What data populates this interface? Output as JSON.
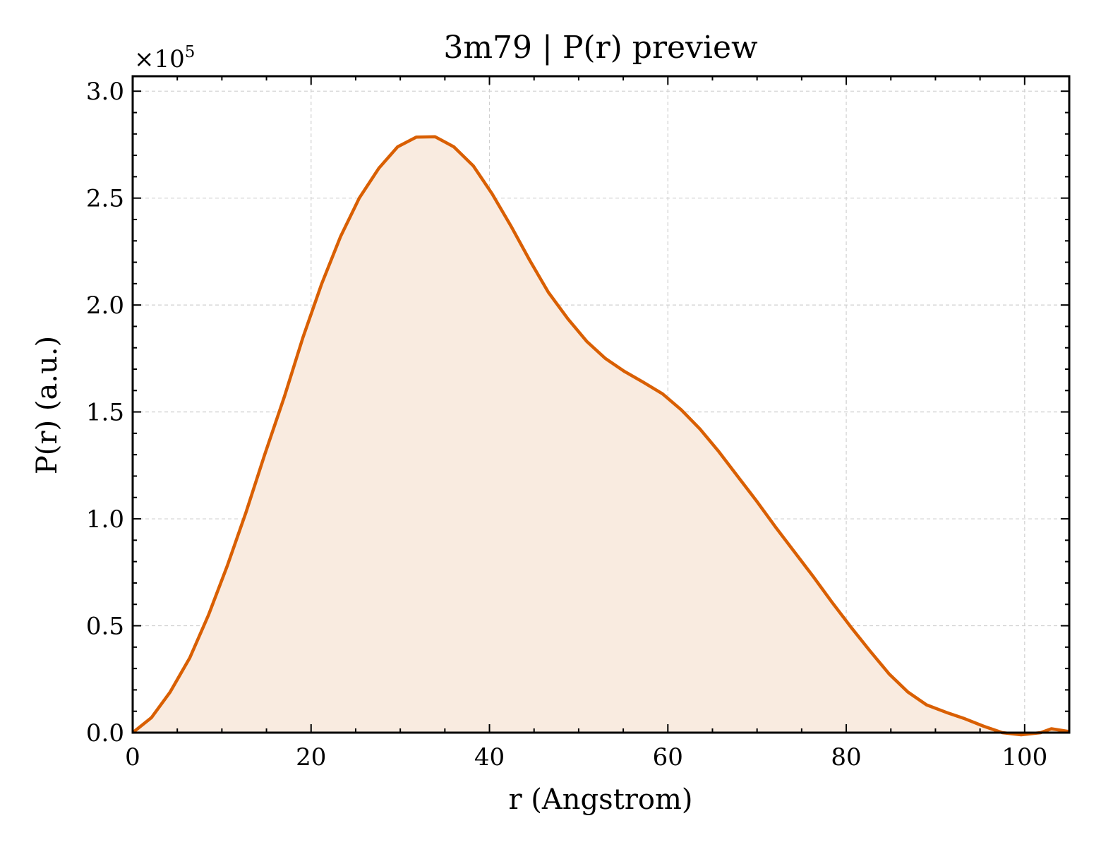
{
  "chart_data": {
    "type": "area",
    "title": "3m79 | P(r) preview",
    "xlabel": "r (Angstrom)",
    "ylabel": "P(r) (a.u.)",
    "y_scale_label": "×10",
    "y_scale_exponent": "5",
    "xlim": [
      0,
      105
    ],
    "ylim": [
      0,
      3.07
    ],
    "x_ticks": [
      0,
      20,
      40,
      60,
      80,
      100
    ],
    "x_tick_labels": [
      "0",
      "20",
      "40",
      "60",
      "80",
      "100"
    ],
    "y_ticks": [
      0,
      0.5,
      1.0,
      1.5,
      2.0,
      2.5,
      3.0
    ],
    "y_tick_labels": [
      "0.0",
      "0.5",
      "1.0",
      "1.5",
      "2.0",
      "2.5",
      "3.0"
    ],
    "grid": true,
    "line_color": "#d95f02",
    "fill_color": "#f9ebe0",
    "series": [
      {
        "x": [
          0,
          2.1,
          4.2,
          6.4,
          8.5,
          10.6,
          12.7,
          14.8,
          17.0,
          19.1,
          21.2,
          23.3,
          25.4,
          27.6,
          29.7,
          31.8,
          33.9,
          36.0,
          38.2,
          40.3,
          42.4,
          44.5,
          46.6,
          48.8,
          50.9,
          53.0,
          55.1,
          57.2,
          59.4,
          61.5,
          63.6,
          65.7,
          67.8,
          70.0,
          72.1,
          74.2,
          76.3,
          78.4,
          80.6,
          82.7,
          84.8,
          86.9,
          89.0,
          91.2,
          93.3,
          95.4,
          97.5,
          99.6,
          101.8,
          103.0,
          105.0
        ],
        "y": [
          0,
          0.07,
          0.19,
          0.35,
          0.55,
          0.78,
          1.03,
          1.3,
          1.57,
          1.85,
          2.1,
          2.32,
          2.5,
          2.64,
          2.74,
          2.785,
          2.787,
          2.74,
          2.65,
          2.52,
          2.37,
          2.21,
          2.06,
          1.935,
          1.83,
          1.75,
          1.69,
          1.64,
          1.585,
          1.51,
          1.42,
          1.315,
          1.2,
          1.08,
          0.96,
          0.845,
          0.73,
          0.61,
          0.49,
          0.38,
          0.275,
          0.19,
          0.13,
          0.095,
          0.065,
          0.03,
          0.0,
          -0.01,
          0.0,
          0.018,
          0.005
        ]
      }
    ]
  }
}
